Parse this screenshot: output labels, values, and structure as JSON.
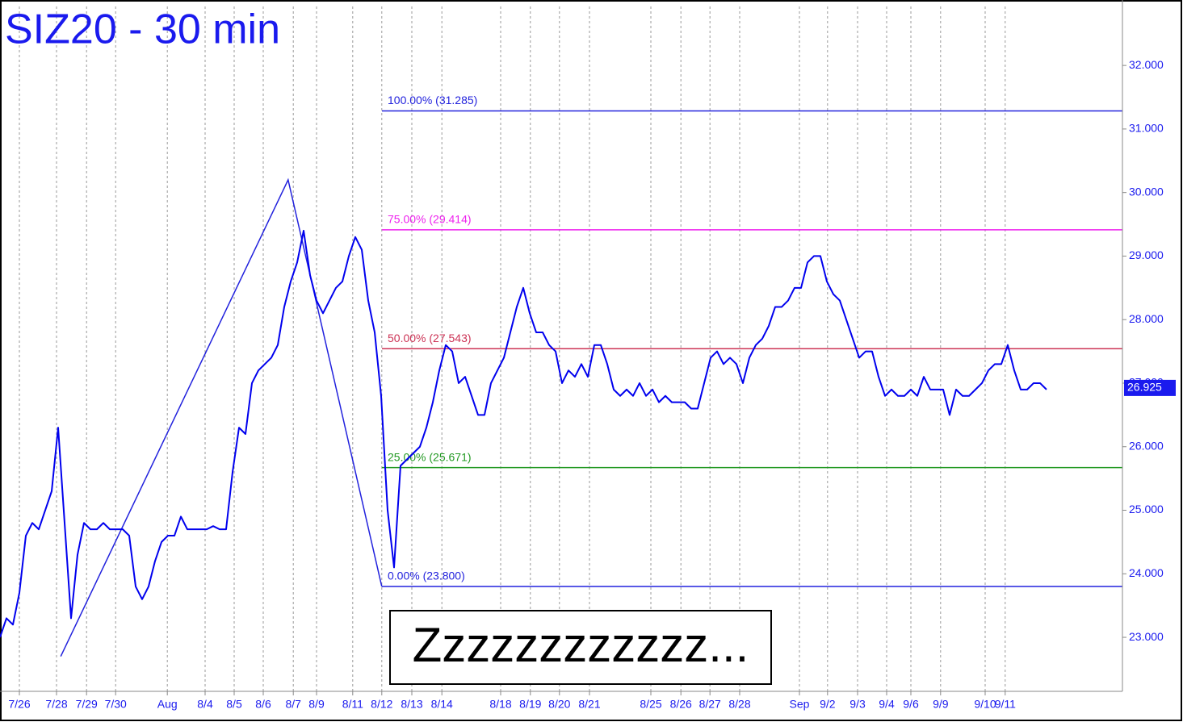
{
  "chart_data": {
    "type": "line",
    "title": "SIZ20 - 30 min",
    "color": "#0000ee",
    "values": [
      23.0,
      23.3,
      23.2,
      23.7,
      24.6,
      24.8,
      24.7,
      25.0,
      25.3,
      26.3,
      24.8,
      23.3,
      24.3,
      24.8,
      24.7,
      24.7,
      24.8,
      24.7,
      24.7,
      24.7,
      24.6,
      23.8,
      23.6,
      23.8,
      24.2,
      24.5,
      24.6,
      24.6,
      24.9,
      24.7,
      24.7,
      24.7,
      24.7,
      24.75,
      24.7,
      24.7,
      25.6,
      26.3,
      26.2,
      27.0,
      27.2,
      27.3,
      27.4,
      27.6,
      28.2,
      28.6,
      28.9,
      29.4,
      28.7,
      28.3,
      28.1,
      28.3,
      28.5,
      28.6,
      29.0,
      29.3,
      29.1,
      28.3,
      27.8,
      26.8,
      25.0,
      24.1,
      25.7,
      25.8,
      25.9,
      26.0,
      26.3,
      26.7,
      27.2,
      27.6,
      27.5,
      27.0,
      27.1,
      26.8,
      26.5,
      26.5,
      27.0,
      27.2,
      27.4,
      27.8,
      28.2,
      28.5,
      28.1,
      27.8,
      27.8,
      27.6,
      27.5,
      27.0,
      27.2,
      27.1,
      27.3,
      27.1,
      27.6,
      27.6,
      27.3,
      26.9,
      26.8,
      26.9,
      26.8,
      27.0,
      26.8,
      26.9,
      26.7,
      26.8,
      26.7,
      26.7,
      26.7,
      26.6,
      26.6,
      27.0,
      27.4,
      27.5,
      27.3,
      27.4,
      27.3,
      27.0,
      27.4,
      27.6,
      27.7,
      27.9,
      28.2,
      28.2,
      28.3,
      28.5,
      28.5,
      28.9,
      29.0,
      29.0,
      28.6,
      28.4,
      28.3,
      28.0,
      27.7,
      27.4,
      27.5,
      27.5,
      27.1,
      26.8,
      26.9,
      26.8,
      26.8,
      26.9,
      26.8,
      27.1,
      26.9,
      26.9,
      26.9,
      26.5,
      26.9,
      26.8,
      26.8,
      26.9,
      27.0,
      27.2,
      27.3,
      27.3,
      27.6,
      27.2,
      26.9,
      26.9,
      27.0,
      27.0,
      26.9
    ],
    "last_price": {
      "value": 26.925,
      "label": "26.925"
    },
    "xlim": [
      0,
      173.75
    ],
    "xticks": [
      {
        "value": 3,
        "label": "7/26"
      },
      {
        "value": 8.75,
        "label": "7/28"
      },
      {
        "value": 13.4,
        "label": "7/29"
      },
      {
        "value": 17.9,
        "label": "7/30"
      },
      {
        "value": 25.9,
        "label": "Aug"
      },
      {
        "value": 31.75,
        "label": "8/4"
      },
      {
        "value": 36.25,
        "label": "8/5"
      },
      {
        "value": 40.75,
        "label": "8/6"
      },
      {
        "value": 45.4,
        "label": "8/7"
      },
      {
        "value": 49,
        "label": "8/9"
      },
      {
        "value": 54.6,
        "label": "8/11"
      },
      {
        "value": 59.1,
        "label": "8/12"
      },
      {
        "value": 63.75,
        "label": "8/13"
      },
      {
        "value": 68.4,
        "label": "8/14"
      },
      {
        "value": 77.5,
        "label": "8/18"
      },
      {
        "value": 82.1,
        "label": "8/19"
      },
      {
        "value": 86.6,
        "label": "8/20"
      },
      {
        "value": 91.25,
        "label": "8/21"
      },
      {
        "value": 100.75,
        "label": "8/25"
      },
      {
        "value": 105.4,
        "label": "8/26"
      },
      {
        "value": 109.9,
        "label": "8/27"
      },
      {
        "value": 114.5,
        "label": "8/28"
      },
      {
        "value": 123.75,
        "label": "Sep"
      },
      {
        "value": 128.1,
        "label": "9/2"
      },
      {
        "value": 132.75,
        "label": "9/3"
      },
      {
        "value": 137.25,
        "label": "9/4"
      },
      {
        "value": 141,
        "label": "9/6"
      },
      {
        "value": 145.6,
        "label": "9/9"
      },
      {
        "value": 152.5,
        "label": "9/10"
      },
      {
        "value": 155.6,
        "label": "9/11"
      }
    ],
    "ylim": [
      22.15,
      33.03
    ],
    "yticks": [
      {
        "value": 23,
        "label": "23.000"
      },
      {
        "value": 24,
        "label": "24.000"
      },
      {
        "value": 25,
        "label": "25.000"
      },
      {
        "value": 26,
        "label": "26.000"
      },
      {
        "value": 27,
        "label": "27.000"
      },
      {
        "value": 28,
        "label": "28.000"
      },
      {
        "value": 29,
        "label": "29.000"
      },
      {
        "value": 30,
        "label": "30.000"
      },
      {
        "value": 31,
        "label": "31.000"
      },
      {
        "value": 32,
        "label": "32.000"
      }
    ],
    "levels": [
      {
        "value": 31.285,
        "label": "100.00% (31.285)",
        "color": "#2222dd"
      },
      {
        "value": 29.414,
        "label": "75.00% (29.414)",
        "color": "#ee22ee"
      },
      {
        "value": 27.543,
        "label": "50.00% (27.543)",
        "color": "#cc3355"
      },
      {
        "value": 25.671,
        "label": "25.00% (25.671)",
        "color": "#229922"
      },
      {
        "value": 23.8,
        "label": "0.00% (23.800)",
        "color": "#2222dd"
      }
    ],
    "pattern": {
      "x": [
        9.4,
        44.6,
        59.1
      ],
      "y": [
        22.7,
        30.2,
        23.8
      ],
      "color": "#2222dd"
    },
    "annotation": "Zzzzzzzzzzzz...",
    "grid": true
  }
}
